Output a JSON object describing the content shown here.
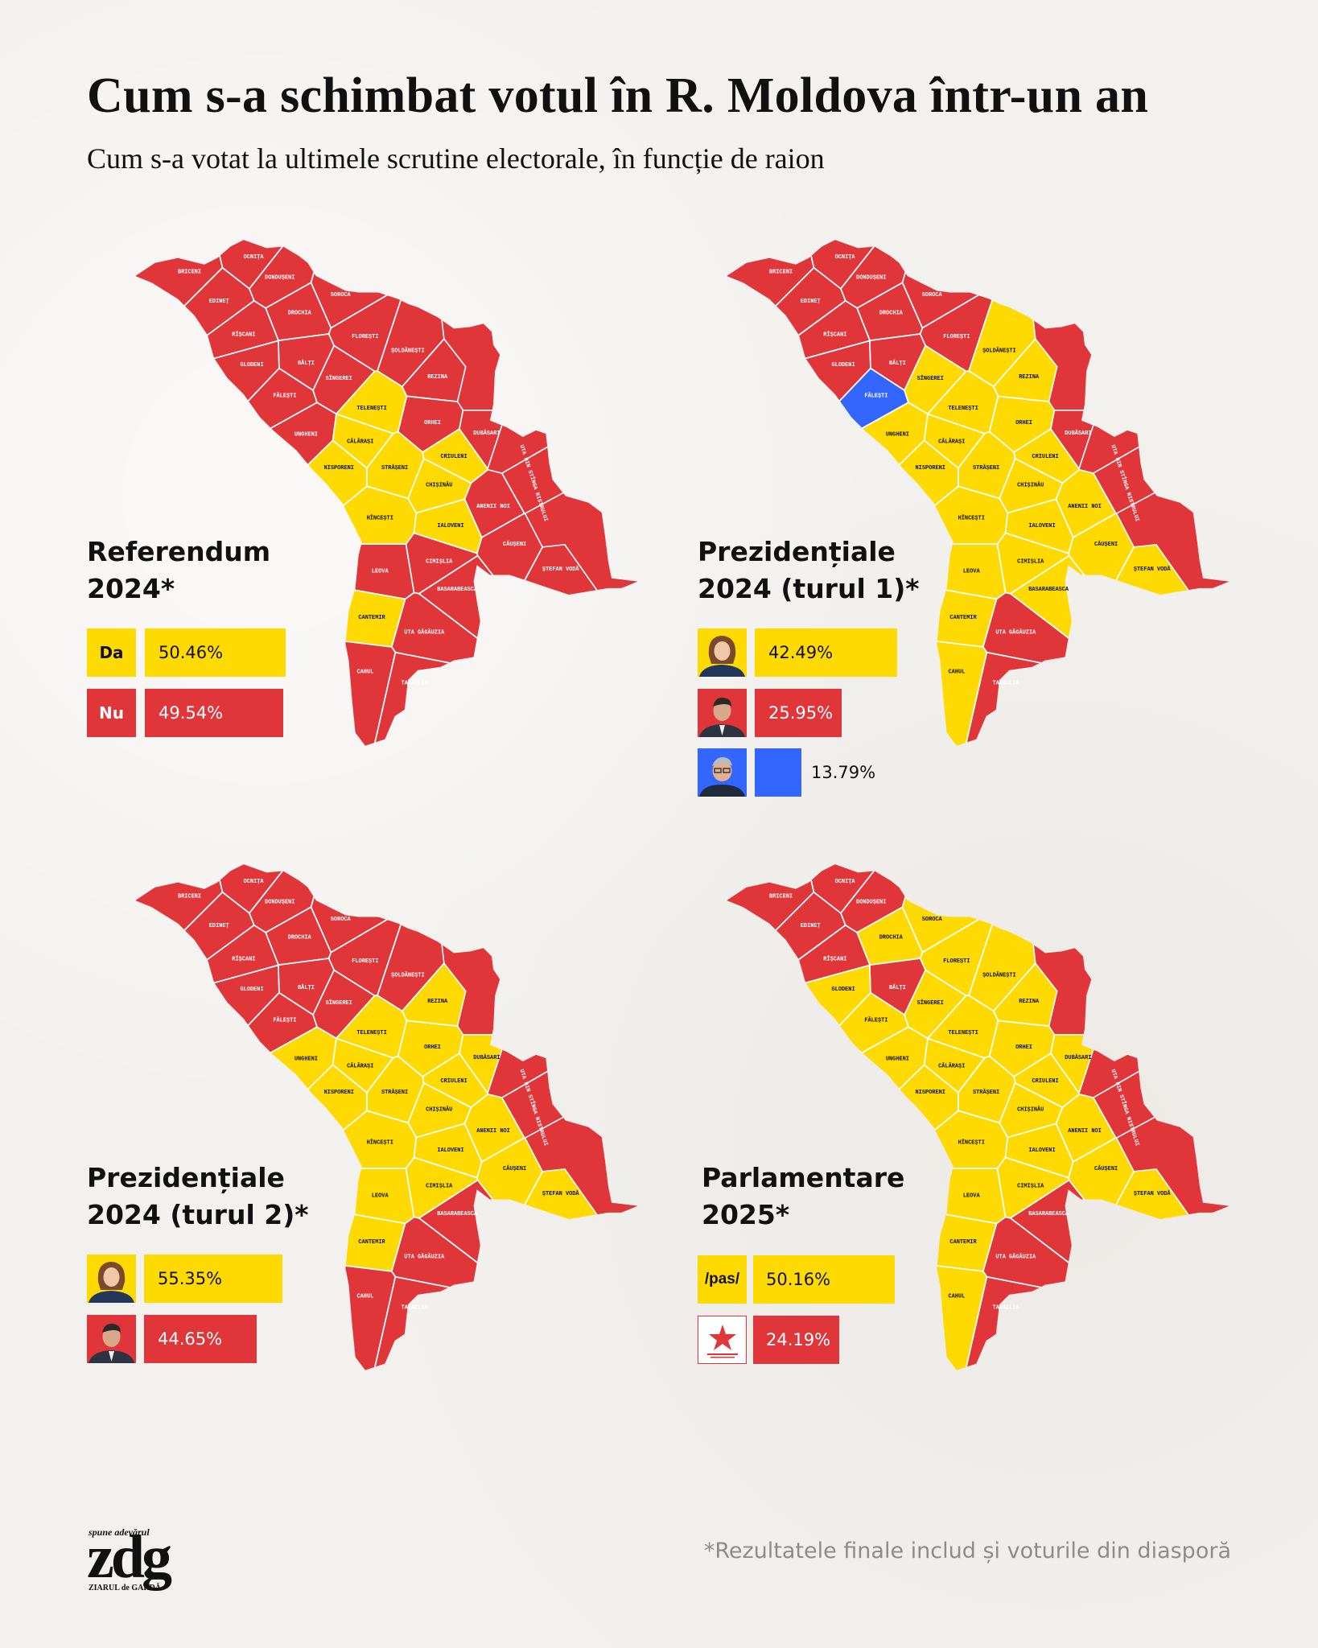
{
  "header": {
    "title": "Cum s-a schimbat votul în R. Moldova într-un an",
    "subtitle": "Cum s-a votat la ultimele scrutine electorale, în funcție de raion"
  },
  "colors": {
    "yellow": "#FFDA00",
    "red": "#E0363A",
    "blue": "#3366FF"
  },
  "districts": [
    "BRICENI",
    "OCNIȚA",
    "DONDUȘENI",
    "EDINEȚ",
    "SOROCA",
    "DROCHIA",
    "RÎȘCANI",
    "FLOREȘTI",
    "ȘOLDĂNEȘTI",
    "GLODENI",
    "BĂLȚI",
    "SÎNGEREI",
    "REZINA",
    "FĂLEȘTI",
    "TELENEȘTI",
    "ORHEI",
    "UNGHENI",
    "DUBĂSARI",
    "CĂLĂRAȘI",
    "CRIULENI",
    "NISPORENI",
    "STRĂȘENI",
    "UTA DIN STÎNGA NISTRULUI",
    "CHIȘINĂU",
    "ANENII NOI",
    "HÎNCEȘTI",
    "IALOVENI",
    "CĂUȘENI",
    "LEOVA",
    "CIMIȘLIA",
    "ȘTEFAN VODĂ",
    "BASARABEASCA",
    "CANTEMIR",
    "UTA GĂGĂUZIA",
    "CAHUL",
    "TARACLIA"
  ],
  "maps": [
    {
      "heading": [
        "Referendum",
        "2024*"
      ],
      "results": [
        {
          "label": "Da",
          "value": "50.46%",
          "share": 50.46,
          "color": "yellow"
        },
        {
          "label": "Nu",
          "value": "49.54%",
          "share": 49.54,
          "color": "red"
        }
      ],
      "yellow_districts": [
        "TELENEȘTI",
        "CĂLĂRAȘI",
        "NISPORENI",
        "STRĂȘENI",
        "CRIULENI",
        "CHIȘINĂU",
        "HÎNCEȘTI",
        "IALOVENI",
        "CANTEMIR"
      ],
      "blue_districts": [],
      "default": "red"
    },
    {
      "heading": [
        "Prezidențiale",
        "2024 (turul 1)*"
      ],
      "results": [
        {
          "icon": "candidate-photo-1",
          "value": "42.49%",
          "share": 42.49,
          "color": "yellow"
        },
        {
          "icon": "candidate-photo-2",
          "value": "25.95%",
          "share": 25.95,
          "color": "red"
        },
        {
          "icon": "candidate-photo-3",
          "value": "13.79%",
          "share": 13.79,
          "color": "blue"
        }
      ],
      "red_districts": [
        "BRICENI",
        "OCNIȚA",
        "DONDUȘENI",
        "EDINEȚ",
        "SOROCA",
        "DROCHIA",
        "RÎȘCANI",
        "FLOREȘTI",
        "GLODENI",
        "BĂLȚI",
        "DUBĂSARI",
        "UTA DIN STÎNGA NISTRULUI",
        "UTA GĂGĂUZIA",
        "TARACLIA"
      ],
      "blue_districts": [
        "FĂLEȘTI"
      ],
      "default": "yellow"
    },
    {
      "heading": [
        "Prezidențiale",
        "2024 (turul 2)*"
      ],
      "results": [
        {
          "icon": "candidate-photo-1",
          "value": "55.35%",
          "share": 55.35,
          "color": "yellow"
        },
        {
          "icon": "candidate-photo-2",
          "value": "44.65%",
          "share": 44.65,
          "color": "red"
        }
      ],
      "red_districts": [
        "BRICENI",
        "OCNIȚA",
        "DONDUȘENI",
        "EDINEȚ",
        "SOROCA",
        "DROCHIA",
        "RÎȘCANI",
        "FLOREȘTI",
        "ȘOLDĂNEȘTI",
        "GLODENI",
        "BĂLȚI",
        "SÎNGEREI",
        "FĂLEȘTI",
        "UTA DIN STÎNGA NISTRULUI",
        "BASARABEASCA",
        "UTA GĂGĂUZIA",
        "CAHUL",
        "TARACLIA"
      ],
      "blue_districts": [],
      "default": "yellow"
    },
    {
      "heading": [
        "Parlamentare",
        "2025*"
      ],
      "results": [
        {
          "label": "/pas/",
          "value": "50.16%",
          "share": 50.16,
          "color": "yellow"
        },
        {
          "icon": "blocul-patriotic-logo",
          "logo_text": "BLOCUL PATRIOTIC",
          "value": "24.19%",
          "share": 24.19,
          "color": "red"
        }
      ],
      "red_districts": [
        "BRICENI",
        "OCNIȚA",
        "DONDUȘENI",
        "EDINEȚ",
        "RÎȘCANI",
        "BĂLȚI",
        "UTA DIN STÎNGA NISTRULUI",
        "BASARABEASCA",
        "UTA GĂGĂUZIA",
        "TARACLIA"
      ],
      "blue_districts": [],
      "default": "yellow"
    }
  ],
  "footer": {
    "note": "*Rezultatele finale includ și voturile din diasporă",
    "logo": {
      "tagline": "spune adevărul",
      "mark": "zdg",
      "name": "ZIARUL de GARDĂ"
    }
  }
}
